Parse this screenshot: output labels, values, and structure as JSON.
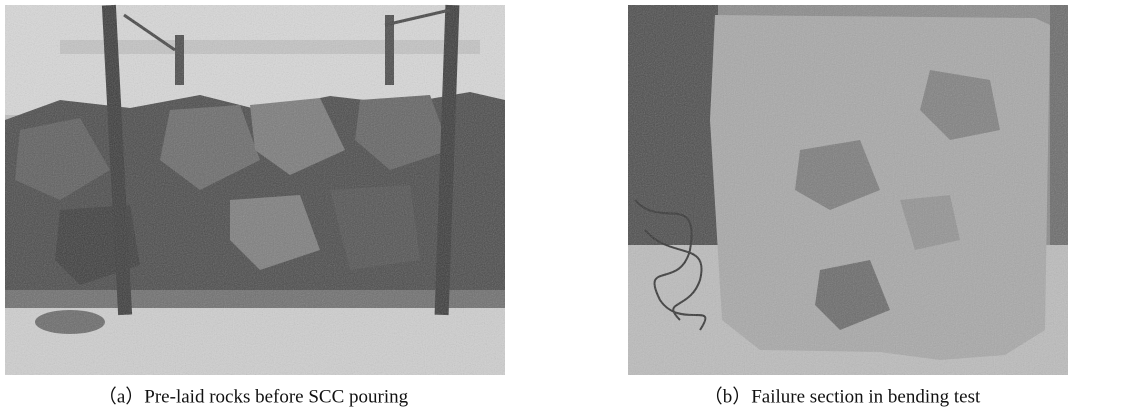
{
  "figure": {
    "panels": [
      {
        "caption": "（a）Pre-laid rocks before SCC pouring"
      },
      {
        "caption": "（b）Failure section in bending test"
      }
    ]
  }
}
